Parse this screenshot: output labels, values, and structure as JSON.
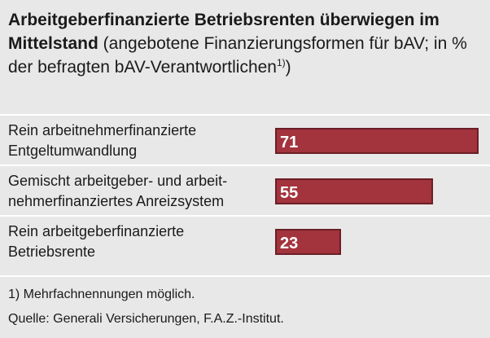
{
  "chart_data": {
    "type": "bar",
    "title_bold": "Arbeitgeberfinanzierte Betriebsrenten überwiegen im Mittelstand",
    "title_rest": " (angebotene Finanzierungsformen für bAV; in % der befragten bAV-Verantwortlichen",
    "title_footnote_mark": "1)",
    "title_close": ")",
    "categories": [
      [
        "Rein arbeitnehmerfinanzierte",
        "Entgeltumwandlung"
      ],
      [
        "Gemischt arbeitgeber- und arbeit-",
        "nehmerfinanziertes Anreizsystem"
      ],
      [
        "Rein arbeitgeberfinanzierte",
        "Betriebsrente"
      ]
    ],
    "values": [
      71,
      55,
      23
    ],
    "xlim": [
      0,
      71
    ],
    "bar_color": "#a3333d"
  },
  "footnotes": {
    "note": "1)  Mehrfachnennungen möglich.",
    "source": "Quelle: Generali Versicherungen, F.A.Z.-Institut."
  }
}
